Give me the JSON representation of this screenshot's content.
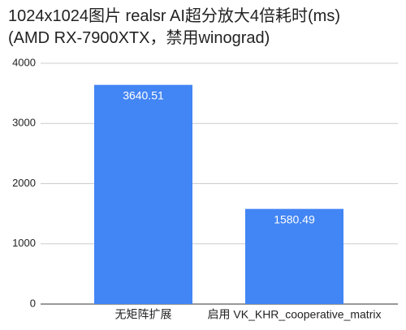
{
  "chart_data": {
    "type": "bar",
    "title": [
      "1024x1024图片 realsr AI超分放大4倍耗时(ms)",
      "(AMD RX-7900XTX，禁用winograd)"
    ],
    "categories": [
      "无矩阵扩展",
      "启用 VK_KHR_cooperative_matrix"
    ],
    "values": [
      3640.51,
      1580.49
    ],
    "color": "#4285f4",
    "ylim": [
      0,
      4000
    ],
    "yticks": [
      0,
      1000,
      2000,
      3000,
      4000
    ],
    "grid": true
  }
}
